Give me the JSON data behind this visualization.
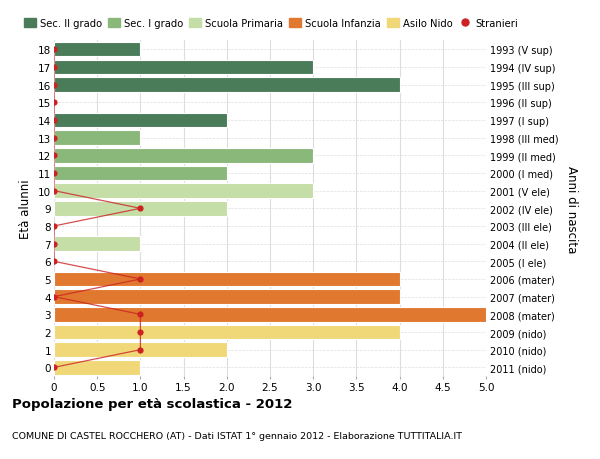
{
  "ages": [
    18,
    17,
    16,
    15,
    14,
    13,
    12,
    11,
    10,
    9,
    8,
    7,
    6,
    5,
    4,
    3,
    2,
    1,
    0
  ],
  "right_labels": [
    "1993 (V sup)",
    "1994 (IV sup)",
    "1995 (III sup)",
    "1996 (II sup)",
    "1997 (I sup)",
    "1998 (III med)",
    "1999 (II med)",
    "2000 (I med)",
    "2001 (V ele)",
    "2002 (IV ele)",
    "2003 (III ele)",
    "2004 (II ele)",
    "2005 (I ele)",
    "2006 (mater)",
    "2007 (mater)",
    "2008 (mater)",
    "2009 (nido)",
    "2010 (nido)",
    "2011 (nido)"
  ],
  "bar_values": [
    1,
    3,
    4,
    0,
    2,
    1,
    3,
    2,
    3,
    2,
    0,
    1,
    0,
    4,
    4,
    5,
    4,
    2,
    1
  ],
  "bar_colors": [
    "#4a7c59",
    "#4a7c59",
    "#4a7c59",
    "#4a7c59",
    "#4a7c59",
    "#8ab87a",
    "#8ab87a",
    "#8ab87a",
    "#c5dea8",
    "#c5dea8",
    "#c5dea8",
    "#c5dea8",
    "#c5dea8",
    "#e07830",
    "#e07830",
    "#e07830",
    "#f0d878",
    "#f0d878",
    "#f0d878"
  ],
  "stranieri_x": [
    0,
    0,
    0,
    0,
    0,
    0,
    0,
    0,
    0,
    1,
    0,
    0,
    0,
    1,
    0,
    1,
    1,
    1,
    0
  ],
  "legend_labels": [
    "Sec. II grado",
    "Sec. I grado",
    "Scuola Primaria",
    "Scuola Infanzia",
    "Asilo Nido",
    "Stranieri"
  ],
  "legend_colors": [
    "#4a7c59",
    "#8ab87a",
    "#c5dea8",
    "#e07830",
    "#f0d878",
    "#cc2222"
  ],
  "ylabel_left": "Età alunni",
  "ylabel_right": "Anni di nascita",
  "title": "Popolazione per età scolastica - 2012",
  "subtitle": "COMUNE DI CASTEL ROCCHERO (AT) - Dati ISTAT 1° gennaio 2012 - Elaborazione TUTTITALIA.IT",
  "xlim": [
    0,
    5.0
  ],
  "background_color": "#ffffff",
  "grid_color": "#dddddd",
  "bar_edge_color": "#ffffff"
}
